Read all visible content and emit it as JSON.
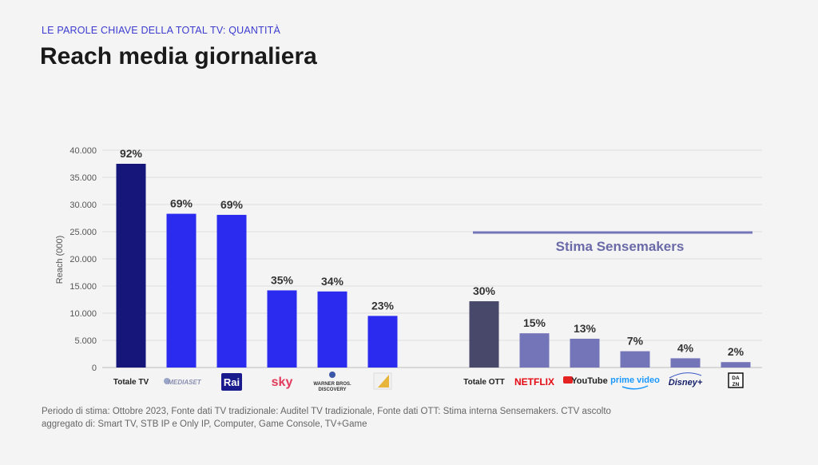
{
  "header": {
    "kicker": "LE PAROLE CHIAVE DELLA TOTAL TV: QUANTITÀ",
    "title": "Reach media giornaliera"
  },
  "footnote": "Periodo di stima: Ottobre 2023, Fonte dati TV tradizionale: Auditel TV tradizionale, Fonte dati OTT: Stima interna Sensemakers. CTV ascolto aggregato di: Smart TV, STB IP e Only IP, Computer, Game Console, TV+Game",
  "chart_data": {
    "type": "bar",
    "ylabel": "Reach (000)",
    "ylim": [
      0,
      40000
    ],
    "yticks": [
      "0",
      "5.000",
      "10.000",
      "15.000",
      "20.000",
      "25.000",
      "30.000",
      "35.000",
      "40.000"
    ],
    "grid": true,
    "annotation": "Stima Sensemakers",
    "categories": [
      "Totale TV",
      "MEDIASET",
      "Rai",
      "sky",
      "WARNER BROS. DISCOVERY",
      "La7",
      "Totale OTT",
      "NETFLIX",
      "YouTube",
      "prime video",
      "Disney+",
      "DAZN"
    ],
    "values": [
      37500,
      28300,
      28100,
      14200,
      14000,
      9500,
      12200,
      6300,
      5300,
      3000,
      1700,
      1000
    ],
    "labels": [
      "92%",
      "69%",
      "69%",
      "35%",
      "34%",
      "23%",
      "30%",
      "15%",
      "13%",
      "7%",
      "4%",
      "2%"
    ],
    "colors": [
      "#15157a",
      "#2b2bf0",
      "#2b2bf0",
      "#2b2bf0",
      "#2b2bf0",
      "#2b2bf0",
      "#48486a",
      "#7474b8",
      "#7474b8",
      "#7474b8",
      "#7474b8",
      "#7474b8"
    ],
    "category_display": [
      "Totale TV",
      "",
      "",
      "",
      "",
      "",
      "Totale OTT",
      "",
      "",
      "",
      "",
      ""
    ]
  }
}
